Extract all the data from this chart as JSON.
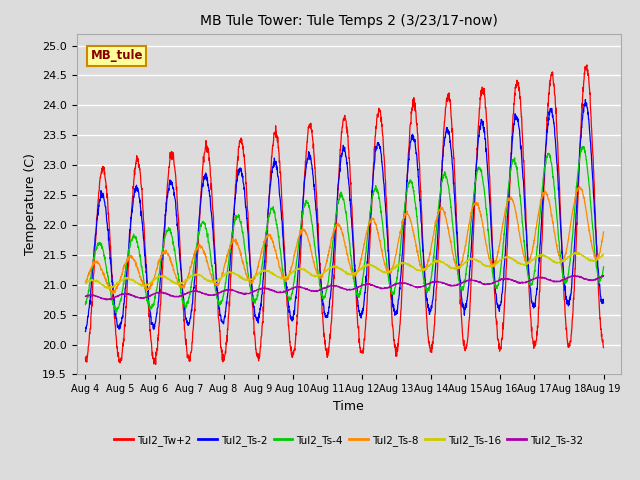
{
  "title": "MB Tule Tower: Tule Temps 2 (3/23/17-now)",
  "xlabel": "Time",
  "ylabel": "Temperature (C)",
  "ylim": [
    19.5,
    25.2
  ],
  "background_color": "#dcdcdc",
  "plot_bg_color": "#dcdcdc",
  "grid_color": "#ffffff",
  "series": [
    {
      "label": "Tul2_Tw+2",
      "color": "#ff0000"
    },
    {
      "label": "Tul2_Ts-2",
      "color": "#0000ff"
    },
    {
      "label": "Tul2_Ts-4",
      "color": "#00cc00"
    },
    {
      "label": "Tul2_Ts-8",
      "color": "#ff8800"
    },
    {
      "label": "Tul2_Ts-16",
      "color": "#cccc00"
    },
    {
      "label": "Tul2_Ts-32",
      "color": "#aa00aa"
    }
  ],
  "x_tick_labels": [
    "Aug 4",
    "Aug 5",
    "Aug 6",
    "Aug 7",
    "Aug 8",
    "Aug 9",
    "Aug 10",
    "Aug 11",
    "Aug 12",
    "Aug 13",
    "Aug 14",
    "Aug 15",
    "Aug 16",
    "Aug 17",
    "Aug 18",
    "Aug 19"
  ],
  "x_tick_positions": [
    0,
    1,
    2,
    3,
    4,
    5,
    6,
    7,
    8,
    9,
    10,
    11,
    12,
    13,
    14,
    15
  ],
  "annotation_text": "MB_tule",
  "annotation_bg": "#ffff99",
  "annotation_border": "#cc8800",
  "annotation_text_color": "#880000"
}
